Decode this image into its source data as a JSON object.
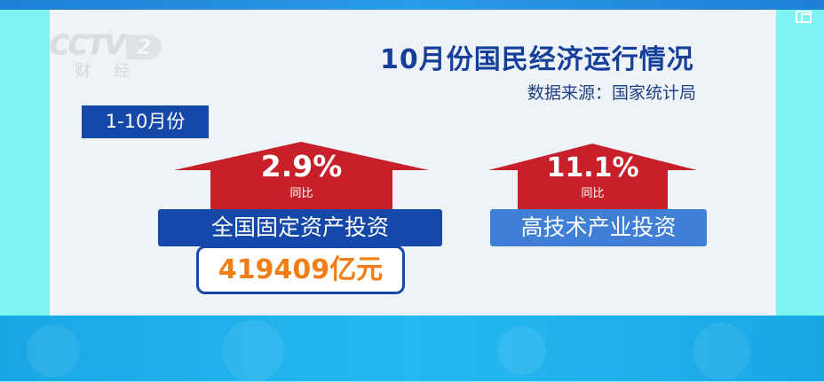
{
  "channel_logo": {
    "brand": "CCTV",
    "number": "2",
    "sub": "财经"
  },
  "header": {
    "title": "10月份国民经济运行情况",
    "source": "数据来源：国家统计局"
  },
  "period": "1-10月份",
  "items": [
    {
      "value": "2.9%",
      "compare": "同比",
      "label": "全国固定资产投资",
      "amount": "419409亿元"
    },
    {
      "value": "11.1%",
      "compare": "同比",
      "label": "高技术产业投资"
    }
  ],
  "colors": {
    "arrow": "#c8202b",
    "label_dark": "#1548a8",
    "label_light": "#3f7fd6",
    "amount": "#f07d15",
    "title": "#163f9b"
  },
  "overlay_icon": "pip-icon"
}
